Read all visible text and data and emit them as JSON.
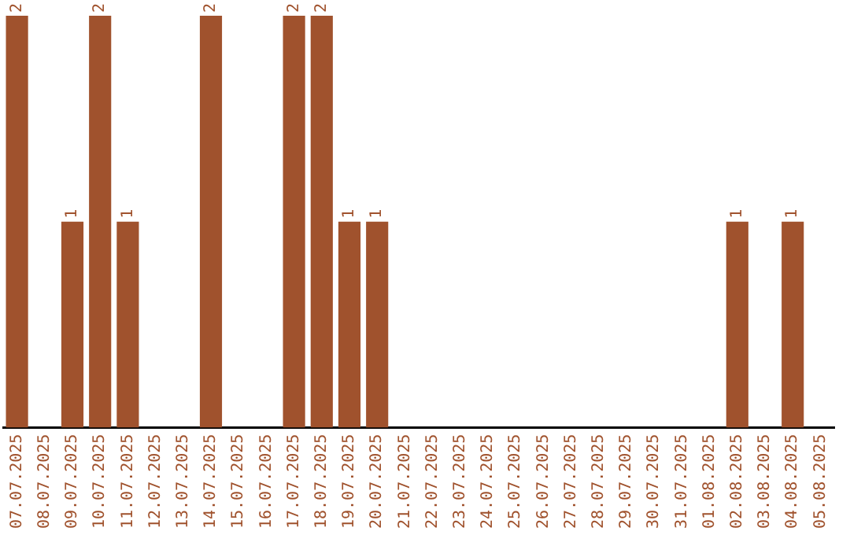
{
  "chart_data": {
    "type": "bar",
    "categories": [
      "07.07.2025",
      "08.07.2025",
      "09.07.2025",
      "10.07.2025",
      "11.07.2025",
      "12.07.2025",
      "13.07.2025",
      "14.07.2025",
      "15.07.2025",
      "16.07.2025",
      "17.07.2025",
      "18.07.2025",
      "19.07.2025",
      "20.07.2025",
      "21.07.2025",
      "22.07.2025",
      "23.07.2025",
      "24.07.2025",
      "25.07.2025",
      "26.07.2025",
      "27.07.2025",
      "28.07.2025",
      "29.07.2025",
      "30.07.2025",
      "31.07.2025",
      "01.08.2025",
      "02.08.2025",
      "03.08.2025",
      "04.08.2025",
      "05.08.2025"
    ],
    "values": [
      2,
      0,
      1,
      2,
      1,
      0,
      0,
      2,
      0,
      0,
      2,
      2,
      1,
      1,
      0,
      0,
      0,
      0,
      0,
      0,
      0,
      0,
      0,
      0,
      0,
      0,
      1,
      0,
      1,
      0
    ],
    "value_labels": [
      "2",
      null,
      "1",
      "2",
      "1",
      null,
      null,
      "2",
      null,
      null,
      "2",
      "2",
      "1",
      "1",
      null,
      null,
      null,
      null,
      null,
      null,
      null,
      null,
      null,
      null,
      null,
      null,
      "1",
      null,
      "1",
      null
    ],
    "color": "#a0522d",
    "grid": false,
    "legend": false
  }
}
